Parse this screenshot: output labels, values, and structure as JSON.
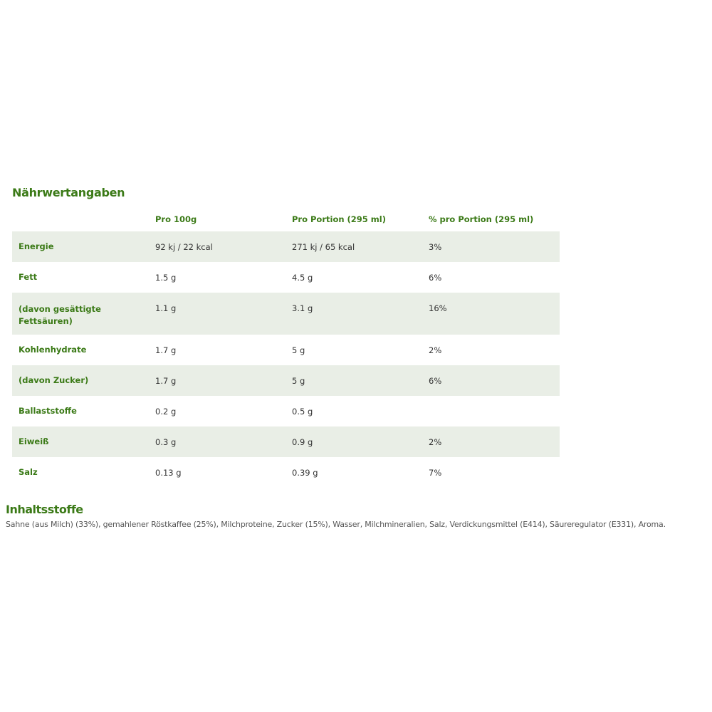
{
  "nutrition": {
    "title": "Nährwertangaben",
    "headers": [
      "",
      "Pro 100g",
      "Pro Portion (295 ml)",
      "% pro Portion (295 ml)"
    ],
    "rows": [
      {
        "label": "Energie",
        "per100": "92 kj / 22 kcal",
        "portion": "271 kj / 65 kcal",
        "percent": "3%"
      },
      {
        "label": "Fett",
        "per100": "1.5 g",
        "portion": "4.5 g",
        "percent": "6%"
      },
      {
        "label": "(davon gesättigte Fettsäuren)",
        "per100": "1.1 g",
        "portion": "3.1 g",
        "percent": "16%"
      },
      {
        "label": "Kohlenhydrate",
        "per100": "1.7 g",
        "portion": "5 g",
        "percent": "2%"
      },
      {
        "label": "(davon Zucker)",
        "per100": "1.7 g",
        "portion": "5 g",
        "percent": "6%"
      },
      {
        "label": "Ballaststoffe",
        "per100": "0.2 g",
        "portion": "0.5 g",
        "percent": ""
      },
      {
        "label": "Eiweiß",
        "per100": "0.3 g",
        "portion": "0.9 g",
        "percent": "2%"
      },
      {
        "label": "Salz",
        "per100": "0.13 g",
        "portion": "0.39 g",
        "percent": "7%"
      }
    ]
  },
  "ingredients": {
    "title": "Inhaltsstoffe",
    "text": "Sahne (aus Milch) (33%), gemahlener Röstkaffee (25%), Milchproteine, Zucker (15%), Wasser, Milchmineralien, Salz, Verdickungsmittel (E414), Säureregulator (E331), Aroma."
  },
  "colors": {
    "accent": "#3b7a17",
    "row_shade": "#e9eee6"
  }
}
